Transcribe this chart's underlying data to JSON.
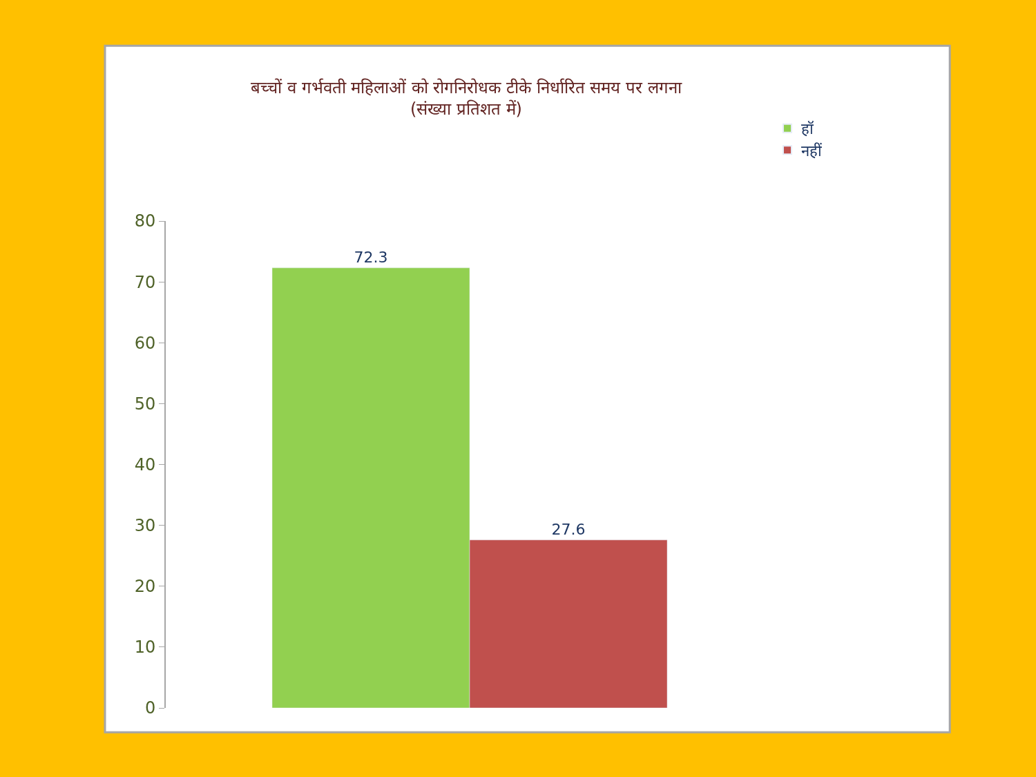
{
  "chart_data": {
    "type": "bar",
    "title": "बच्चों व गर्भवती महिलाओं को रोगनिरोधक टीके निर्धारित समय पर लगना",
    "subtitle": "(संख्या प्रतिशत में)",
    "categories": [
      null
    ],
    "series": [
      {
        "name": "हॉ",
        "color": "#92d050",
        "values": [
          72.3
        ]
      },
      {
        "name": "नहीं",
        "color": "#c0504d",
        "values": [
          27.6
        ]
      }
    ],
    "ylim": [
      0,
      80
    ],
    "yticks": [
      0,
      10,
      20,
      30,
      40,
      50,
      60,
      70,
      80
    ],
    "legend": "top right",
    "data_labels": true,
    "tick_labels": "y"
  }
}
